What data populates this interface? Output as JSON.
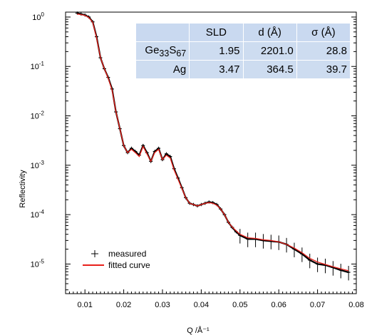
{
  "chart_data": {
    "type": "line",
    "xlabel": "Q /Å⁻¹",
    "ylabel": "Reflectivity",
    "xlim": [
      0.005,
      0.08
    ],
    "ylim_log10": [
      -5.6,
      0.1
    ],
    "y_scale": "log",
    "x_ticks": [
      "0.01",
      "0.02",
      "0.03",
      "0.04",
      "0.05",
      "0.06",
      "0.07",
      "0.08"
    ],
    "y_ticks": [
      {
        "base": "10",
        "exp": "0"
      },
      {
        "base": "10",
        "exp": "-1"
      },
      {
        "base": "10",
        "exp": "-2"
      },
      {
        "base": "10",
        "exp": "-3"
      },
      {
        "base": "10",
        "exp": "-4"
      },
      {
        "base": "10",
        "exp": "-5"
      }
    ],
    "legend_position": "bottom-left",
    "grid": false,
    "series": [
      {
        "name": "measured",
        "style": "errorbar-points",
        "color": "#000000",
        "x": [
          0.008,
          0.009,
          0.01,
          0.011,
          0.012,
          0.013,
          0.014,
          0.015,
          0.016,
          0.017,
          0.018,
          0.019,
          0.02,
          0.021,
          0.022,
          0.023,
          0.024,
          0.025,
          0.026,
          0.027,
          0.028,
          0.029,
          0.03,
          0.031,
          0.032,
          0.033,
          0.034,
          0.035,
          0.036,
          0.037,
          0.038,
          0.039,
          0.04,
          0.041,
          0.042,
          0.043,
          0.044,
          0.045,
          0.046,
          0.047,
          0.048,
          0.049,
          0.05,
          0.052,
          0.054,
          0.056,
          0.058,
          0.06,
          0.062,
          0.064,
          0.066,
          0.068,
          0.07,
          0.072,
          0.074,
          0.076,
          0.078
        ],
        "y": [
          1.2,
          1.15,
          1.1,
          1.0,
          0.8,
          0.4,
          0.15,
          0.09,
          0.06,
          0.035,
          0.012,
          0.0055,
          0.0025,
          0.0018,
          0.0022,
          0.0019,
          0.0016,
          0.0025,
          0.0018,
          0.0012,
          0.0019,
          0.0022,
          0.0013,
          0.0017,
          0.0015,
          0.00085,
          0.00055,
          0.00035,
          0.00022,
          0.00017,
          0.00016,
          0.00015,
          0.00016,
          0.00017,
          0.00018,
          0.000175,
          0.00016,
          0.00013,
          0.0001,
          7e-05,
          5.5e-05,
          4.5e-05,
          3.8e-05,
          3.2e-05,
          3.2e-05,
          3e-05,
          2.9e-05,
          2.8e-05,
          2.5e-05,
          2e-05,
          1.6e-05,
          1.2e-05,
          1e-05,
          9.5e-06,
          8.5e-06,
          7.5e-06,
          6.8e-06
        ]
      },
      {
        "name": "fitted curve",
        "style": "line",
        "color": "#e8201a",
        "x": [
          0.008,
          0.009,
          0.01,
          0.011,
          0.012,
          0.013,
          0.014,
          0.015,
          0.016,
          0.017,
          0.018,
          0.019,
          0.02,
          0.021,
          0.022,
          0.023,
          0.024,
          0.025,
          0.026,
          0.027,
          0.028,
          0.029,
          0.03,
          0.031,
          0.032,
          0.033,
          0.034,
          0.035,
          0.036,
          0.037,
          0.038,
          0.039,
          0.04,
          0.041,
          0.042,
          0.043,
          0.044,
          0.045,
          0.046,
          0.047,
          0.048,
          0.049,
          0.05,
          0.052,
          0.054,
          0.056,
          0.058,
          0.06,
          0.062,
          0.064,
          0.066,
          0.068,
          0.07,
          0.072,
          0.074,
          0.076,
          0.078
        ],
        "y": [
          1.15,
          1.12,
          1.08,
          0.98,
          0.78,
          0.38,
          0.15,
          0.09,
          0.058,
          0.033,
          0.012,
          0.0055,
          0.0025,
          0.0018,
          0.0021,
          0.0018,
          0.0015,
          0.0024,
          0.0017,
          0.0012,
          0.0018,
          0.0021,
          0.0013,
          0.0016,
          0.0014,
          0.0008,
          0.00052,
          0.00034,
          0.00022,
          0.00017,
          0.00016,
          0.00015,
          0.00016,
          0.00017,
          0.000175,
          0.00017,
          0.000155,
          0.00013,
          0.0001,
          7e-05,
          5.6e-05,
          4.7e-05,
          4e-05,
          3.4e-05,
          3.3e-05,
          3.1e-05,
          3e-05,
          2.8e-05,
          2.5e-05,
          2.1e-05,
          1.7e-05,
          1.3e-05,
          1.1e-05,
          9.8e-06,
          8.8e-06,
          8e-06,
          7.3e-06
        ]
      }
    ],
    "legend": [
      {
        "marker": "+",
        "label": "measured"
      },
      {
        "marker": "line",
        "label": "fitted curve"
      }
    ],
    "table": {
      "header": [
        "",
        "SLD",
        "d (Å)",
        "σ (Å)"
      ],
      "rows": [
        {
          "name": "Ge",
          "sub1": "33",
          "mid": "S",
          "sub2": "67",
          "sld": "1.95",
          "d": "2201.0",
          "sigma": "28.8"
        },
        {
          "name": "Ag",
          "sld": "3.47",
          "d": "364.5",
          "sigma": "39.7"
        }
      ]
    }
  }
}
